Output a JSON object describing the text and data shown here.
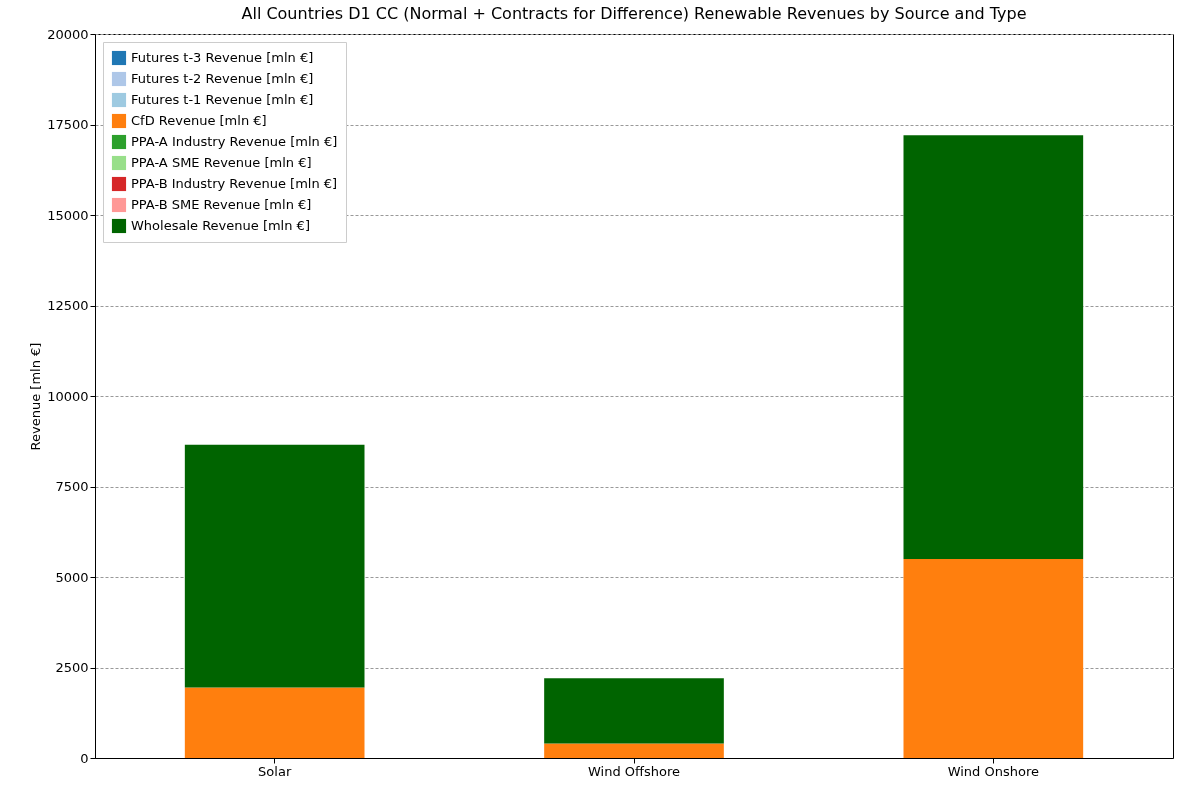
{
  "chart_data": {
    "type": "bar",
    "title": "All Countries D1 CC (Normal + Contracts for Difference) Renewable Revenues by Source and Type",
    "ylabel": "Revenue [mln €]",
    "categories": [
      "Solar",
      "Wind Offshore",
      "Wind Onshore"
    ],
    "stacked": true,
    "ylim": [
      0,
      20000
    ],
    "yticks": [
      0,
      2500,
      5000,
      7500,
      10000,
      12500,
      15000,
      17500,
      20000
    ],
    "grid": "y",
    "legend": "top left",
    "series": [
      {
        "name": "Futures t-3 Revenue [mln €]",
        "color": "#1f77b4",
        "values": [
          0,
          0,
          0
        ]
      },
      {
        "name": "Futures t-2 Revenue [mln €]",
        "color": "#aec7e8",
        "values": [
          0,
          0,
          0
        ]
      },
      {
        "name": "Futures t-1 Revenue [mln €]",
        "color": "#9ecae1",
        "values": [
          0,
          0,
          0
        ]
      },
      {
        "name": "CfD Revenue [mln €]",
        "color": "#ff7f0e",
        "values": [
          1950,
          400,
          5500
        ]
      },
      {
        "name": "PPA-A Industry Revenue [mln €]",
        "color": "#2ca02c",
        "values": [
          0,
          0,
          0
        ]
      },
      {
        "name": "PPA-A SME Revenue [mln €]",
        "color": "#98df8a",
        "values": [
          0,
          0,
          0
        ]
      },
      {
        "name": "PPA-B Industry Revenue [mln €]",
        "color": "#d62728",
        "values": [
          0,
          0,
          0
        ]
      },
      {
        "name": "PPA-B SME Revenue [mln €]",
        "color": "#ff9896",
        "values": [
          0,
          0,
          0
        ]
      },
      {
        "name": "Wholesale Revenue [mln €]",
        "color": "#006400",
        "values": [
          6700,
          1800,
          11700
        ]
      }
    ]
  }
}
